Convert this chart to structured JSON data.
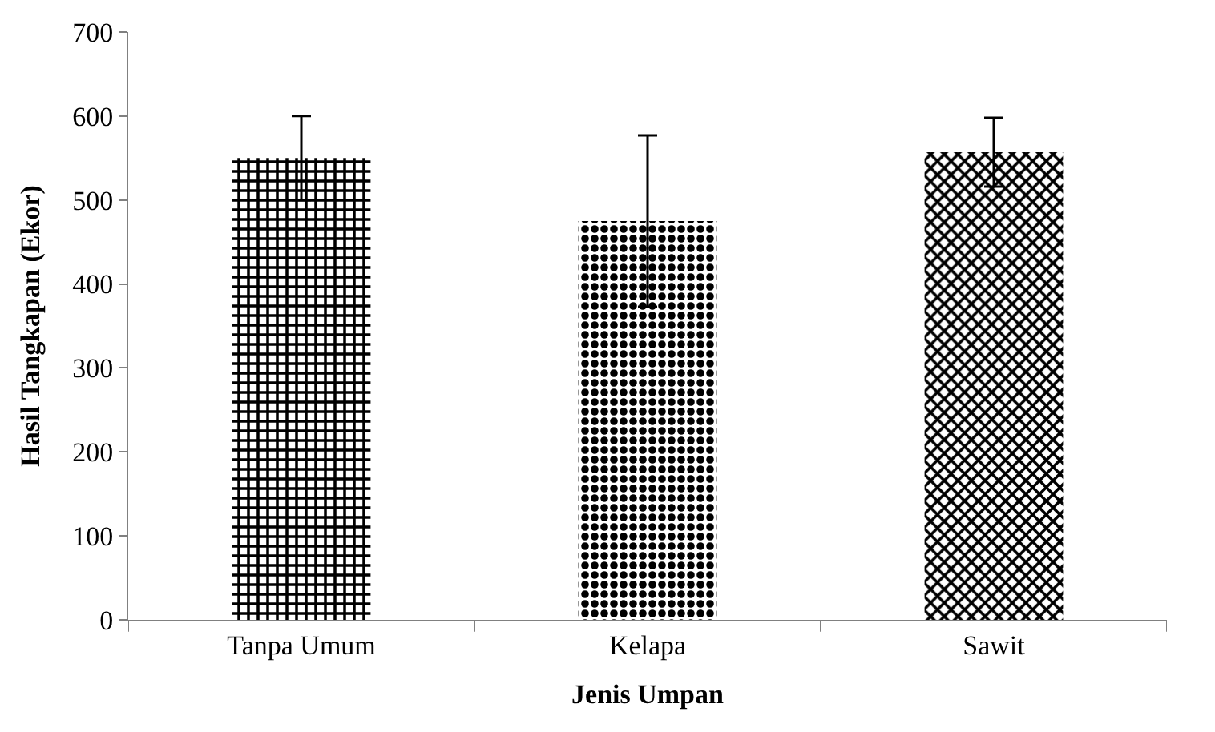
{
  "chart_data": {
    "type": "bar",
    "xlabel": "Jenis Umpan",
    "ylabel": "Hasil Tangkapan (Ekor)",
    "categories": [
      "Tanpa Umum",
      "Kelapa",
      "Sawit"
    ],
    "values": [
      550,
      475,
      557
    ],
    "errors": [
      50,
      102,
      41
    ],
    "colors": [
      "#000000",
      "#000000",
      "#000000"
    ],
    "ylim": [
      0,
      700
    ],
    "yticks": [
      0,
      100,
      200,
      300,
      400,
      500,
      600,
      700
    ]
  }
}
